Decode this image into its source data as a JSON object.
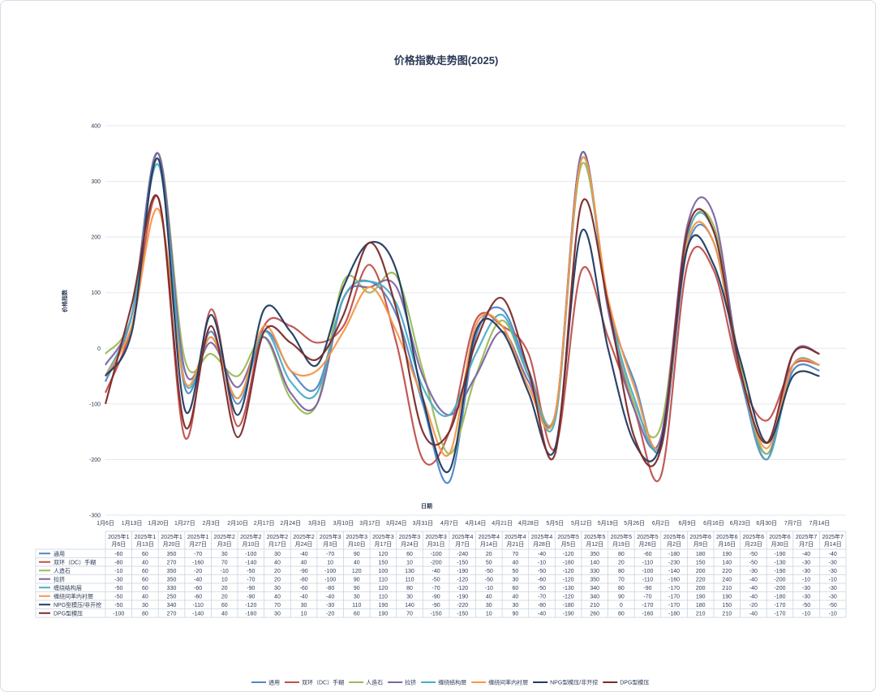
{
  "chart_data": {
    "type": "line",
    "title": "价格指数走势图(2025)",
    "xlabel": "日期",
    "ylabel": "价格指数",
    "ylim": [
      -300,
      400
    ],
    "yticks": [
      400,
      300,
      200,
      100,
      0,
      -100,
      -200,
      -300
    ],
    "grid": true,
    "legend_position": "bottom",
    "axis_dates": [
      "1月6日",
      "1月13日",
      "1月20日",
      "1月27日",
      "2月3日",
      "2月10日",
      "2月17日",
      "2月24日",
      "3月3日",
      "3月10日",
      "3月17日",
      "3月24日",
      "3月31日",
      "4月7日",
      "4月14日",
      "4月21日",
      "4月28日",
      "5月5日",
      "5月12日",
      "5月19日",
      "5月26日",
      "6月2日",
      "6月9日",
      "6月16日",
      "6月23日",
      "6月30日",
      "7月7日",
      "7月14日"
    ],
    "table_dates": [
      [
        "2025年1",
        "月6日"
      ],
      [
        "2025年1",
        "月13日"
      ],
      [
        "2025年1",
        "月20日"
      ],
      [
        "2025年1",
        "月27日"
      ],
      [
        "2025年2",
        "月3日"
      ],
      [
        "2025年2",
        "月10日"
      ],
      [
        "2025年2",
        "月17日"
      ],
      [
        "2025年2",
        "月24日"
      ],
      [
        "2025年3",
        "月3日"
      ],
      [
        "2025年3",
        "月10日"
      ],
      [
        "2025年3",
        "月17日"
      ],
      [
        "2025年3",
        "月24日"
      ],
      [
        "2025年3",
        "月31日"
      ],
      [
        "2025年4",
        "月7日"
      ],
      [
        "2025年4",
        "月14日"
      ],
      [
        "2025年4",
        "月21日"
      ],
      [
        "2025年4",
        "月28日"
      ],
      [
        "2025年5",
        "月5日"
      ],
      [
        "2025年5",
        "月12日"
      ],
      [
        "2025年5",
        "月19日"
      ],
      [
        "2025年5",
        "月26日"
      ],
      [
        "2025年6",
        "月2日"
      ],
      [
        "2025年6",
        "月9日"
      ],
      [
        "2025年6",
        "月16日"
      ],
      [
        "2025年6",
        "月23日"
      ],
      [
        "2025年6",
        "月30日"
      ],
      [
        "2025年7",
        "月7日"
      ],
      [
        "2025年7",
        "月14日"
      ]
    ],
    "series": [
      {
        "name": "通用",
        "color": "#4f86c6",
        "values": [
          -60,
          60,
          350,
          -70,
          30,
          -100,
          30,
          -40,
          -70,
          90,
          120,
          60,
          -100,
          -240,
          20,
          70,
          -40,
          -120,
          350,
          80,
          -60,
          -180,
          180,
          190,
          -50,
          -190,
          -40,
          -40
        ]
      },
      {
        "name": "双环（DC）手糊",
        "color": "#c0504d",
        "values": [
          -80,
          40,
          270,
          -160,
          70,
          -140,
          40,
          40,
          10,
          40,
          150,
          10,
          -200,
          -150,
          50,
          40,
          -10,
          -180,
          140,
          20,
          -110,
          -230,
          150,
          140,
          -50,
          -130,
          -30,
          -30
        ]
      },
      {
        "name": "人造石",
        "color": "#9bbb59",
        "values": [
          -10,
          60,
          350,
          -20,
          -10,
          -50,
          20,
          -90,
          -100,
          120,
          100,
          130,
          -40,
          -190,
          -50,
          50,
          -50,
          -120,
          330,
          80,
          -100,
          -140,
          200,
          220,
          -30,
          -190,
          -30,
          -30
        ]
      },
      {
        "name": "拉挤",
        "color": "#8064a2",
        "values": [
          -30,
          60,
          350,
          -40,
          10,
          -70,
          20,
          -80,
          -100,
          90,
          110,
          110,
          -50,
          -120,
          -50,
          30,
          -60,
          -120,
          350,
          70,
          -110,
          -160,
          220,
          240,
          -40,
          -200,
          -10,
          -10
        ]
      },
      {
        "name": "缠绕结构层",
        "color": "#4bacc6",
        "values": [
          -50,
          60,
          330,
          -60,
          20,
          -90,
          30,
          -60,
          -80,
          90,
          120,
          80,
          -70,
          -120,
          -10,
          60,
          -50,
          -130,
          340,
          80,
          -90,
          -170,
          200,
          210,
          -40,
          -200,
          -30,
          -30
        ]
      },
      {
        "name": "缠绕间苯内衬层",
        "color": "#f79646",
        "values": [
          -50,
          40,
          250,
          -60,
          20,
          -90,
          40,
          -40,
          -40,
          30,
          110,
          30,
          -90,
          -190,
          40,
          40,
          -70,
          -120,
          340,
          90,
          -70,
          -170,
          190,
          190,
          -40,
          -180,
          -30,
          -30
        ]
      },
      {
        "name": "NPG型模压/非开挖",
        "color": "#1f3a5f",
        "values": [
          -50,
          30,
          340,
          -110,
          60,
          -120,
          70,
          30,
          -30,
          110,
          190,
          140,
          -90,
          -220,
          30,
          30,
          -80,
          -180,
          210,
          0,
          -170,
          -170,
          180,
          150,
          -20,
          -170,
          -50,
          -50
        ]
      },
      {
        "name": "DPG型模压",
        "color": "#7b2a2a",
        "values": [
          -100,
          80,
          270,
          -140,
          40,
          -160,
          30,
          10,
          -20,
          60,
          190,
          70,
          -150,
          -150,
          10,
          90,
          -40,
          -190,
          260,
          80,
          -160,
          -180,
          210,
          210,
          -40,
          -170,
          -10,
          -10
        ]
      }
    ]
  }
}
